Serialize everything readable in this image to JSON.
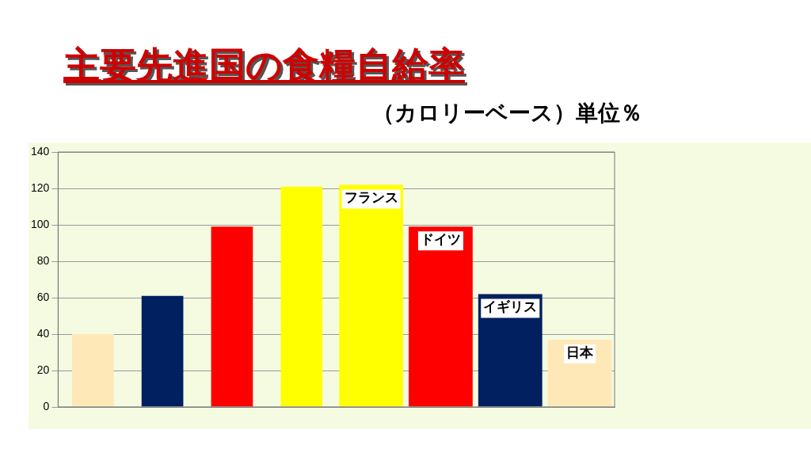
{
  "chart_data": {
    "type": "bar",
    "title": "主要先進国の食糧自給率",
    "subtitle": "（カロリーベース）単位％",
    "categories": [
      null,
      null,
      null,
      null,
      "フランス",
      "ドイツ",
      "イギリス",
      "日本"
    ],
    "series": [
      {
        "colors": [
          "#ffe8b8",
          "#002060",
          "#ff0000",
          "#ffff00",
          null,
          null,
          null,
          null
        ],
        "values": [
          40,
          61,
          99,
          121,
          null,
          null,
          null,
          null
        ]
      },
      {
        "colors": [
          null,
          null,
          null,
          null,
          "#ffff00",
          "#ff0000",
          "#002060",
          "#ffe8b8"
        ],
        "values": [
          null,
          null,
          null,
          null,
          122,
          99,
          62,
          37
        ]
      }
    ],
    "ylim": [
      0,
      140
    ],
    "yticks": [
      0,
      20,
      40,
      60,
      80,
      100,
      120,
      140
    ],
    "grid": "y",
    "legend": false
  }
}
